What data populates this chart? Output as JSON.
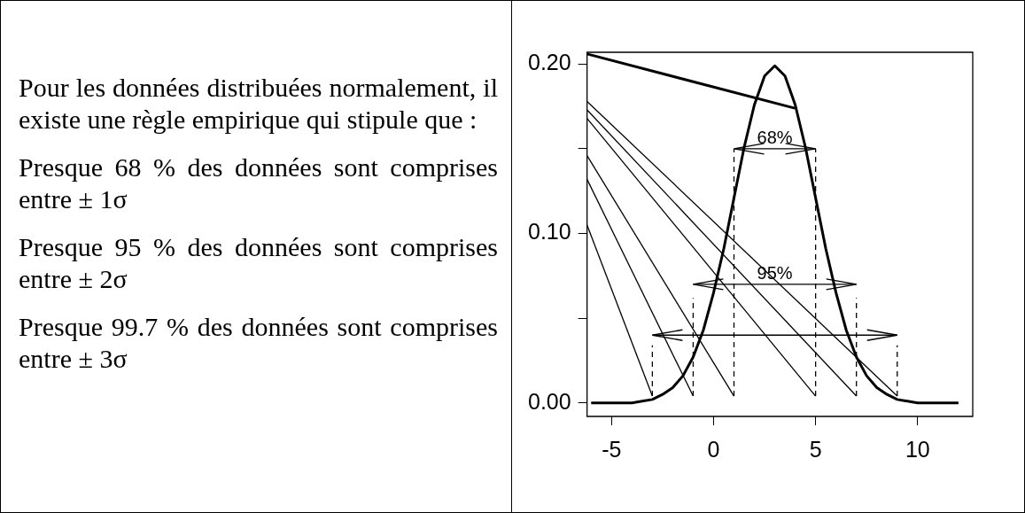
{
  "chart_data": [
    {
      "type": "other",
      "annotations": [
        "Pour les données distribuées normalement, il existe une règle empirique qui stipule que :",
        "Presque 68 % des données sont comprises entre ± 1σ",
        "Presque 95 % des données sont comprises entre ± 2σ",
        "Presque 99.7 % des données sont comprises entre ± 3σ"
      ]
    },
    {
      "type": "line",
      "legend": false,
      "grid": false,
      "marker": "none",
      "xlim": [
        -6.2,
        12.7
      ],
      "xticks": [
        -5,
        0,
        5,
        10
      ],
      "ylim": [
        -0.008,
        0.207
      ],
      "yticks": [
        {
          "value": 0,
          "label": "0.00"
        },
        {
          "value": 0.05,
          "label": null
        },
        {
          "value": 0.1,
          "label": "0.10"
        },
        {
          "value": 0.15,
          "label": null
        },
        {
          "value": 0.2,
          "label": "0.20"
        }
      ],
      "annotations": [
        "68%",
        "95%"
      ],
      "series": [
        {
          "color": "#000000",
          "line_style": "solid",
          "x": [
            -6,
            -5.5,
            -5,
            -4.5,
            -4,
            -3.5,
            -3,
            -2.5,
            -2,
            -1.5,
            -1,
            -0.5,
            0,
            0.5,
            1,
            1.5,
            2,
            2.5,
            3,
            3.5,
            4,
            4.5,
            5,
            5.5,
            6,
            6.5,
            7,
            7.5,
            8,
            8.5,
            9,
            9.5,
            10,
            10.5,
            11,
            11.5,
            12
          ],
          "values": [
            0,
            0,
            0,
            0,
            0,
            0.001,
            0.002,
            0.005,
            0.009,
            0.016,
            0.027,
            0.043,
            0.065,
            0.091,
            0.121,
            0.151,
            0.176,
            0.193,
            0.199,
            0.193,
            0.176,
            0.151,
            0.121,
            0.091,
            0.065,
            0.043,
            0.027,
            0.016,
            0.009,
            0.005,
            0.002,
            0.001,
            0,
            0,
            0,
            0,
            0
          ]
        },
        {
          "color": "#000000",
          "line_style": "solid",
          "x": [
            -6.2,
            3.98
          ],
          "values": [
            0.206,
            0.174
          ]
        },
        {
          "color": "#000000",
          "line_style": "solid",
          "x": [
            -6.2,
            -3
          ],
          "values": [
            0.105,
            0.004
          ]
        },
        {
          "color": "#000000",
          "line_style": "solid",
          "x": [
            -6.2,
            -1
          ],
          "values": [
            0.132,
            0.004
          ]
        },
        {
          "color": "#000000",
          "line_style": "solid",
          "x": [
            -6.2,
            1
          ],
          "values": [
            0.146,
            0.004
          ]
        },
        {
          "color": "#000000",
          "line_style": "solid",
          "x": [
            -6.2,
            5
          ],
          "values": [
            0.168,
            0.004
          ]
        },
        {
          "color": "#000000",
          "line_style": "solid",
          "x": [
            -6.2,
            7
          ],
          "values": [
            0.173,
            0.004
          ]
        },
        {
          "color": "#000000",
          "line_style": "solid",
          "x": [
            -6.2,
            9
          ],
          "values": [
            0.178,
            0.004
          ]
        },
        {
          "color": "#000000",
          "line_style": "dashed",
          "x": [
            -3,
            -3
          ],
          "values": [
            0.004,
            0.034
          ]
        },
        {
          "color": "#000000",
          "line_style": "dashed",
          "x": [
            -1,
            -1
          ],
          "values": [
            0.004,
            0.062
          ]
        },
        {
          "color": "#000000",
          "line_style": "dashed",
          "x": [
            1,
            1
          ],
          "values": [
            0.004,
            0.15
          ]
        },
        {
          "color": "#000000",
          "line_style": "dashed",
          "x": [
            5,
            5
          ],
          "values": [
            0.004,
            0.15
          ]
        },
        {
          "color": "#000000",
          "line_style": "dashed",
          "x": [
            7,
            7
          ],
          "values": [
            0.004,
            0.062
          ]
        },
        {
          "color": "#000000",
          "line_style": "dashed",
          "x": [
            9,
            9
          ],
          "values": [
            0.004,
            0.034
          ]
        },
        {
          "color": "#000000",
          "line_style": "solid",
          "x": [
            1,
            5
          ],
          "values": [
            0.15,
            0.15
          ]
        },
        {
          "color": "#000000",
          "line_style": "solid",
          "x": [
            -1,
            7
          ],
          "values": [
            0.07,
            0.07
          ]
        },
        {
          "color": "#000000",
          "line_style": "solid",
          "x": [
            -3,
            9
          ],
          "values": [
            0.04,
            0.04
          ]
        }
      ]
    }
  ]
}
